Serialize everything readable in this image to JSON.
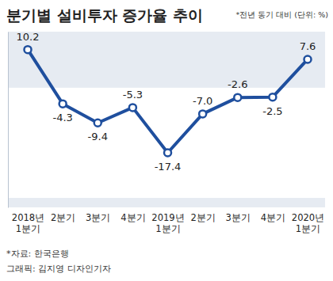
{
  "chart_data": {
    "type": "line",
    "title": "분기별 설비투자 증가율 추이",
    "subtitle": "*전년 동기 대비 (단위: %)",
    "categories": [
      "2018년\n1분기",
      "2분기",
      "3분기",
      "4분기",
      "2019년\n1분기",
      "2분기",
      "3분기",
      "4분기",
      "2020년\n1분기"
    ],
    "values": [
      10.2,
      -4.3,
      -9.4,
      -5.3,
      -17.4,
      -7.0,
      -2.6,
      -2.5,
      7.6
    ],
    "value_labels": [
      "10.2",
      "-4.3",
      "-9.4",
      "-5.3",
      "-17.4",
      "-7.0",
      "-2.6",
      "-2.5",
      "7.6"
    ],
    "color": "#1f4f9e",
    "marker": "circle",
    "ylim": [
      -32,
      15
    ],
    "data_labels": true,
    "tick_labels": "x",
    "grid": false,
    "source": "*자료: 한국은행",
    "credit": "그래픽: 김지영 디자인기자"
  }
}
